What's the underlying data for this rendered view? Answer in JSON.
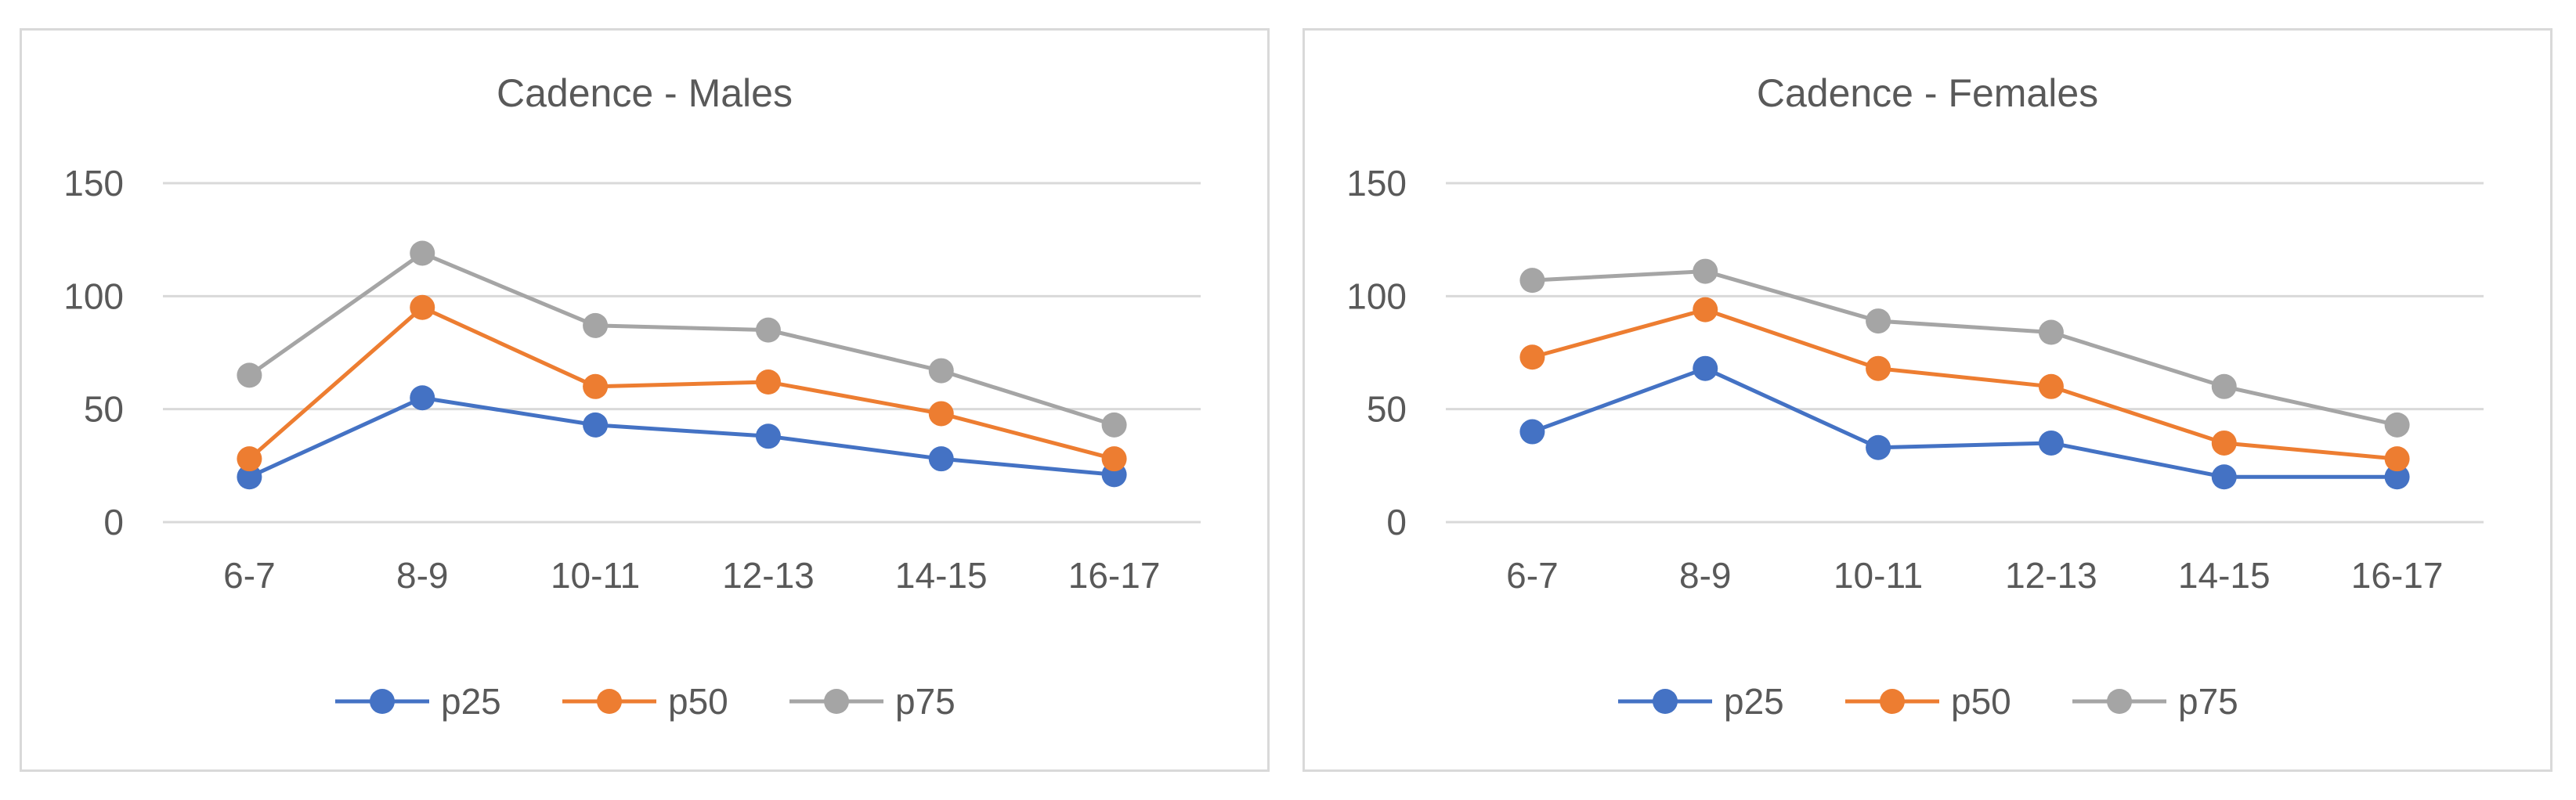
{
  "chart_data": [
    {
      "type": "line",
      "title": "Cadence - Males",
      "xlabel": "",
      "ylabel": "",
      "categories": [
        "6-7",
        "8-9",
        "10-11",
        "12-13",
        "14-15",
        "16-17"
      ],
      "yticks": [
        "0",
        "50",
        "100",
        "150"
      ],
      "ylim": [
        0,
        150
      ],
      "grid": true,
      "legend_position": "bottom",
      "series": [
        {
          "name": "p25",
          "color": "#4472c4",
          "values": [
            20,
            55,
            43,
            38,
            28,
            21
          ]
        },
        {
          "name": "p50",
          "color": "#ed7d31",
          "values": [
            28,
            95,
            60,
            62,
            48,
            28
          ]
        },
        {
          "name": "p75",
          "color": "#a5a5a5",
          "values": [
            65,
            119,
            87,
            85,
            67,
            43
          ]
        }
      ]
    },
    {
      "type": "line",
      "title": "Cadence - Females",
      "xlabel": "",
      "ylabel": "",
      "categories": [
        "6-7",
        "8-9",
        "10-11",
        "12-13",
        "14-15",
        "16-17"
      ],
      "yticks": [
        "0",
        "50",
        "100",
        "150"
      ],
      "ylim": [
        0,
        150
      ],
      "grid": true,
      "legend_position": "bottom",
      "series": [
        {
          "name": "p25",
          "color": "#4472c4",
          "values": [
            40,
            68,
            33,
            35,
            20,
            20
          ]
        },
        {
          "name": "p50",
          "color": "#ed7d31",
          "values": [
            73,
            94,
            68,
            60,
            35,
            28
          ]
        },
        {
          "name": "p75",
          "color": "#a5a5a5",
          "values": [
            107,
            111,
            89,
            84,
            60,
            43
          ]
        }
      ]
    }
  ]
}
